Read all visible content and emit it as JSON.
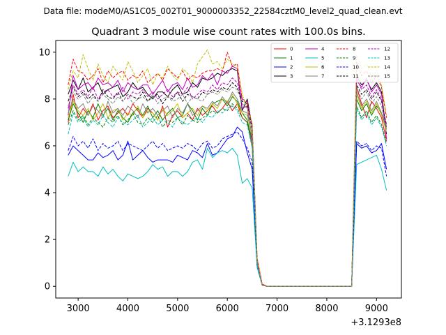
{
  "suptitle": "Data file: modeM0/AS1C05_002T01_9000003352_22584cztM0_level2_quad_clean.evt",
  "chart_data": {
    "type": "line",
    "title": "Quadrant 3 module wise count rates with 100.0s bins.",
    "xlabel": "",
    "ylabel": "",
    "x_offset_label": "+3.1293e8",
    "xlim": [
      2550,
      9500
    ],
    "ylim": [
      -0.5,
      10.5
    ],
    "xticks": [
      3000,
      4000,
      5000,
      6000,
      7000,
      8000,
      9000
    ],
    "yticks": [
      0,
      2,
      4,
      6,
      8,
      10
    ],
    "grid": false,
    "legend": {
      "placement": "top-right",
      "columns": 4
    },
    "bin_width": 100,
    "x": [
      2800,
      2900,
      3000,
      3100,
      3200,
      3300,
      3400,
      3500,
      3600,
      3700,
      3800,
      3900,
      4000,
      4100,
      4200,
      4300,
      4400,
      4500,
      4600,
      4700,
      4800,
      4900,
      5000,
      5100,
      5200,
      5300,
      5400,
      5500,
      5600,
      5700,
      5800,
      5900,
      6000,
      6100,
      6200,
      6300,
      6400,
      6500,
      6600,
      6700,
      6800,
      6900,
      7000,
      7100,
      7200,
      7300,
      7400,
      7500,
      7600,
      7700,
      7800,
      7900,
      8000,
      8100,
      8200,
      8300,
      8400,
      8500,
      8600,
      8700,
      8800,
      8900,
      9000,
      9100,
      9200
    ],
    "series": [
      {
        "name": "0",
        "color": "#ff0000",
        "dash": "solid",
        "values": [
          7.0,
          8.2,
          7.2,
          7.6,
          7.3,
          7.8,
          7.1,
          7.5,
          7.7,
          7.2,
          7.4,
          7.6,
          7.3,
          7.8,
          7.5,
          7.2,
          7.6,
          7.4,
          7.1,
          7.7,
          6.8,
          7.3,
          7.5,
          7.2,
          7.4,
          7.1,
          7.6,
          7.3,
          7.5,
          7.7,
          7.4,
          7.6,
          7.9,
          7.5,
          7.8,
          7.2,
          7.0,
          6.0,
          1.2,
          0.1,
          0,
          0,
          0,
          0,
          0,
          0,
          0,
          0,
          0,
          0,
          0,
          0,
          0,
          0,
          0,
          0,
          0,
          0,
          8.5,
          7.8,
          7.2,
          7.9,
          7.6,
          7.2,
          6.2
        ]
      },
      {
        "name": "1",
        "color": "#008000",
        "dash": "solid",
        "values": [
          7.1,
          7.8,
          7.4,
          7.0,
          7.5,
          7.2,
          7.8,
          7.3,
          7.6,
          7.1,
          7.5,
          7.2,
          7.0,
          7.4,
          7.6,
          7.3,
          7.7,
          7.2,
          7.5,
          7.1,
          7.4,
          7.6,
          7.2,
          7.3,
          7.8,
          7.5,
          7.1,
          7.6,
          7.3,
          7.8,
          7.9,
          8.0,
          7.7,
          8.1,
          7.9,
          7.4,
          7.1,
          6.2,
          1.0,
          0.05,
          0,
          0,
          0,
          0,
          0,
          0,
          0,
          0,
          0,
          0,
          0,
          0,
          0,
          0,
          0,
          0,
          0,
          0,
          8.0,
          7.5,
          7.8,
          7.3,
          7.7,
          7.4,
          6.8
        ]
      },
      {
        "name": "2",
        "color": "#0000ff",
        "dash": "solid",
        "values": [
          5.6,
          6.0,
          5.8,
          5.6,
          5.4,
          5.4,
          5.7,
          5.5,
          5.6,
          5.8,
          5.4,
          5.6,
          6.2,
          5.4,
          5.6,
          5.8,
          5.5,
          5.3,
          5.4,
          5.4,
          5.4,
          5.3,
          5.6,
          5.5,
          5.4,
          5.8,
          5.7,
          5.5,
          6.1,
          5.6,
          5.7,
          6.0,
          6.3,
          6.4,
          6.8,
          6.6,
          5.7,
          5.0,
          0.9,
          0.05,
          0,
          0,
          0,
          0,
          0,
          0,
          0,
          0,
          0,
          0,
          0,
          0,
          0,
          0,
          0,
          0,
          0,
          0,
          6.1,
          5.9,
          6.0,
          5.7,
          5.8,
          6.1,
          5.0
        ]
      },
      {
        "name": "3",
        "color": "#000000",
        "dash": "solid",
        "values": [
          8.2,
          8.8,
          8.4,
          8.9,
          8.3,
          8.5,
          8.7,
          8.2,
          8.4,
          8.5,
          8.6,
          8.1,
          8.3,
          8.7,
          8.4,
          8.5,
          8.2,
          8.0,
          8.3,
          8.3,
          8.1,
          8.4,
          8.6,
          8.2,
          8.3,
          8.7,
          8.5,
          8.9,
          8.8,
          8.9,
          9.1,
          9.0,
          9.2,
          9.3,
          9.2,
          7.5,
          8.0,
          6.8,
          1.1,
          0.05,
          0,
          0,
          0,
          0,
          0,
          0,
          0,
          0,
          0,
          0,
          0,
          0,
          0,
          0,
          0,
          0,
          0,
          0,
          9.0,
          8.6,
          8.8,
          8.4,
          8.7,
          8.3,
          6.5
        ]
      },
      {
        "name": "4",
        "color": "#bf00bf",
        "dash": "solid",
        "values": [
          7.3,
          9.0,
          8.4,
          8.6,
          8.7,
          8.4,
          8.9,
          8.6,
          8.7,
          8.5,
          8.8,
          8.3,
          8.7,
          8.5,
          8.4,
          8.6,
          8.6,
          8.2,
          8.5,
          8.8,
          8.3,
          8.6,
          8.7,
          8.4,
          8.9,
          8.5,
          8.6,
          9.0,
          8.8,
          9.1,
          8.6,
          9.2,
          9.1,
          9.4,
          9.3,
          7.6,
          7.7,
          6.2,
          1.1,
          0.05,
          0,
          0,
          0,
          0,
          0,
          0,
          0,
          0,
          0,
          0,
          0,
          0,
          0,
          0,
          0,
          0,
          0,
          0,
          8.8,
          8.5,
          8.9,
          8.3,
          8.6,
          8.2,
          6.3
        ]
      },
      {
        "name": "5",
        "color": "#00bfbf",
        "dash": "solid",
        "values": [
          4.7,
          5.3,
          4.9,
          5.1,
          4.9,
          4.9,
          4.7,
          5.1,
          4.8,
          5.0,
          4.7,
          4.5,
          4.8,
          4.7,
          4.6,
          4.7,
          4.9,
          5.2,
          5.0,
          5.1,
          4.7,
          4.9,
          4.9,
          4.7,
          4.9,
          5.3,
          5.4,
          5.0,
          5.9,
          5.5,
          5.7,
          5.8,
          5.7,
          5.9,
          5.6,
          4.4,
          4.6,
          4.2,
          0.8,
          0.05,
          0,
          0,
          0,
          0,
          0,
          0,
          0,
          0,
          0,
          0,
          0,
          0,
          0,
          0,
          0,
          0,
          0,
          0,
          5.2,
          5.3,
          5.4,
          5.5,
          5.6,
          5.0,
          4.1
        ]
      },
      {
        "name": "6",
        "color": "#bfbf00",
        "dash": "solid",
        "values": [
          7.2,
          7.9,
          7.5,
          7.3,
          7.6,
          7.1,
          7.4,
          7.8,
          7.2,
          7.5,
          7.6,
          7.1,
          7.4,
          7.3,
          7.7,
          7.2,
          7.5,
          7.4,
          7.1,
          7.6,
          7.3,
          7.5,
          7.8,
          7.2,
          7.4,
          7.6,
          7.3,
          7.7,
          7.5,
          7.8,
          7.6,
          8.0,
          7.9,
          8.2,
          7.8,
          7.4,
          7.3,
          6.4,
          1.0,
          0.05,
          0,
          0,
          0,
          0,
          0,
          0,
          0,
          0,
          0,
          0,
          0,
          0,
          0,
          0,
          0,
          0,
          0,
          0,
          8.2,
          7.6,
          7.9,
          7.4,
          7.8,
          7.3,
          6.6
        ]
      },
      {
        "name": "7",
        "color": "#808080",
        "dash": "solid",
        "values": [
          7.4,
          8.0,
          7.6,
          7.8,
          7.3,
          7.7,
          7.5,
          7.2,
          7.9,
          7.4,
          7.6,
          7.3,
          7.7,
          7.5,
          7.2,
          7.8,
          7.4,
          7.6,
          7.3,
          7.5,
          7.7,
          7.2,
          7.6,
          7.4,
          7.8,
          7.3,
          7.5,
          7.7,
          7.6,
          7.9,
          7.7,
          8.1,
          7.8,
          8.3,
          8.0,
          7.5,
          7.4,
          6.5,
          1.0,
          0.05,
          0,
          0,
          0,
          0,
          0,
          0,
          0,
          0,
          0,
          0,
          0,
          0,
          0,
          0,
          0,
          0,
          0,
          0,
          8.3,
          7.7,
          8.0,
          7.5,
          7.9,
          7.4,
          6.7
        ]
      },
      {
        "name": "8",
        "color": "#ff0000",
        "dash": "dashed",
        "values": [
          8.6,
          9.7,
          9.2,
          9.1,
          8.8,
          9.0,
          9.3,
          8.7,
          9.2,
          8.9,
          9.1,
          9.2,
          8.8,
          9.0,
          8.9,
          9.2,
          8.7,
          8.9,
          9.1,
          8.8,
          9.3,
          9.1,
          8.9,
          9.2,
          8.8,
          9.0,
          8.9,
          9.1,
          9.2,
          9.2,
          9.3,
          9.2,
          10.0,
          9.4,
          9.5,
          8.0,
          7.8,
          6.9,
          1.2,
          0.05,
          0,
          0,
          0,
          0,
          0,
          0,
          0,
          0,
          0,
          0,
          0,
          0,
          0,
          0,
          0,
          0,
          0,
          0,
          9.6,
          9.0,
          9.2,
          8.7,
          9.0,
          8.5,
          7.2
        ]
      },
      {
        "name": "9",
        "color": "#008000",
        "dash": "dashed",
        "values": [
          6.9,
          7.5,
          7.1,
          7.3,
          6.9,
          7.2,
          7.0,
          6.8,
          7.2,
          7.0,
          7.3,
          6.9,
          7.1,
          7.4,
          7.0,
          6.9,
          7.2,
          7.0,
          7.3,
          6.8,
          7.1,
          7.0,
          7.2,
          6.9,
          7.3,
          7.1,
          7.0,
          7.2,
          7.3,
          7.5,
          7.4,
          7.6,
          7.5,
          7.8,
          7.6,
          7.2,
          7.0,
          6.0,
          0.9,
          0.05,
          0,
          0,
          0,
          0,
          0,
          0,
          0,
          0,
          0,
          0,
          0,
          0,
          0,
          0,
          0,
          0,
          0,
          0,
          7.7,
          7.2,
          7.5,
          7.0,
          7.3,
          6.9,
          6.1
        ]
      },
      {
        "name": "10",
        "color": "#0000ff",
        "dash": "dashed",
        "values": [
          5.8,
          6.4,
          6.0,
          6.2,
          5.9,
          6.3,
          5.8,
          6.1,
          5.9,
          6.0,
          6.2,
          5.8,
          6.1,
          6.0,
          5.9,
          5.8,
          6.0,
          6.2,
          5.9,
          6.1,
          5.8,
          5.9,
          6.0,
          5.9,
          6.1,
          6.0,
          5.8,
          6.1,
          6.2,
          5.9,
          6.0,
          6.3,
          6.4,
          6.5,
          6.6,
          6.3,
          5.9,
          5.3,
          0.9,
          0.05,
          0,
          0,
          0,
          0,
          0,
          0,
          0,
          0,
          0,
          0,
          0,
          0,
          0,
          0,
          0,
          0,
          0,
          0,
          6.2,
          6.0,
          6.1,
          5.8,
          6.0,
          5.9,
          4.7
        ]
      },
      {
        "name": "11",
        "color": "#000000",
        "dash": "dashed",
        "values": [
          7.9,
          8.5,
          8.1,
          8.3,
          8.0,
          8.2,
          7.9,
          8.4,
          8.1,
          8.0,
          8.3,
          7.9,
          8.2,
          8.1,
          8.0,
          8.3,
          7.9,
          8.1,
          8.2,
          7.8,
          8.1,
          8.0,
          8.3,
          7.9,
          8.2,
          8.1,
          8.0,
          8.3,
          8.2,
          8.4,
          8.3,
          8.5,
          8.4,
          8.7,
          8.5,
          7.9,
          7.8,
          6.7,
          1.0,
          0.05,
          0,
          0,
          0,
          0,
          0,
          0,
          0,
          0,
          0,
          0,
          0,
          0,
          0,
          0,
          0,
          0,
          0,
          0,
          8.6,
          8.2,
          8.4,
          8.0,
          8.3,
          7.9,
          6.9
        ]
      },
      {
        "name": "12",
        "color": "#bf00bf",
        "dash": "dashed",
        "values": [
          7.6,
          8.6,
          8.2,
          8.4,
          8.1,
          8.5,
          8.0,
          8.3,
          8.4,
          8.1,
          8.2,
          8.5,
          8.0,
          8.3,
          8.2,
          8.4,
          8.1,
          8.3,
          8.0,
          8.2,
          8.4,
          8.1,
          8.3,
          8.2,
          8.5,
          8.0,
          8.2,
          8.4,
          8.3,
          8.6,
          8.4,
          8.7,
          8.6,
          8.9,
          8.7,
          8.0,
          7.9,
          6.8,
          1.1,
          0.05,
          0,
          0,
          0,
          0,
          0,
          0,
          0,
          0,
          0,
          0,
          0,
          0,
          0,
          0,
          0,
          0,
          0,
          0,
          8.9,
          8.4,
          8.6,
          8.1,
          8.4,
          8.0,
          6.8
        ]
      },
      {
        "name": "13",
        "color": "#00bfbf",
        "dash": "dashed",
        "values": [
          6.5,
          7.4,
          7.0,
          7.2,
          6.8,
          7.1,
          6.9,
          7.3,
          7.0,
          6.8,
          7.2,
          7.0,
          6.9,
          7.1,
          7.3,
          6.8,
          7.0,
          7.2,
          6.9,
          7.1,
          7.0,
          6.8,
          7.2,
          7.0,
          6.9,
          7.1,
          7.2,
          7.0,
          7.3,
          7.2,
          7.5,
          7.4,
          7.6,
          7.7,
          7.5,
          7.0,
          6.9,
          5.9,
          0.9,
          0.05,
          0,
          0,
          0,
          0,
          0,
          0,
          0,
          0,
          0,
          0,
          0,
          0,
          0,
          0,
          0,
          0,
          0,
          0,
          7.6,
          7.1,
          7.4,
          6.9,
          7.2,
          6.8,
          6.0
        ]
      },
      {
        "name": "14",
        "color": "#bfbf00",
        "dash": "dashed",
        "values": [
          8.4,
          9.2,
          8.9,
          9.9,
          9.3,
          8.8,
          9.5,
          9.0,
          8.7,
          9.4,
          9.1,
          8.8,
          9.6,
          9.2,
          8.7,
          9.0,
          9.3,
          8.6,
          9.1,
          8.9,
          9.4,
          9.0,
          8.8,
          9.3,
          9.1,
          8.7,
          9.5,
          9.8,
          10.1,
          9.5,
          9.6,
          9.3,
          9.7,
          9.5,
          9.4,
          8.2,
          7.6,
          7.0,
          1.2,
          0.05,
          0,
          0,
          0,
          0,
          0,
          0,
          0,
          0,
          0,
          0,
          0,
          0,
          0,
          0,
          0,
          0,
          0,
          0,
          9.9,
          9.3,
          9.5,
          8.9,
          9.2,
          8.6,
          7.3
        ]
      },
      {
        "name": "15",
        "color": "#808080",
        "dash": "dashed",
        "values": [
          7.7,
          8.3,
          8.0,
          8.2,
          7.8,
          8.1,
          7.9,
          8.2,
          8.0,
          7.8,
          8.1,
          7.9,
          8.2,
          7.8,
          8.0,
          8.1,
          7.9,
          8.2,
          7.8,
          8.0,
          8.1,
          7.9,
          8.0,
          8.2,
          7.8,
          8.1,
          8.0,
          7.9,
          8.2,
          8.3,
          8.2,
          8.4,
          8.3,
          8.5,
          8.4,
          7.8,
          7.6,
          6.6,
          1.0,
          0.05,
          0,
          0,
          0,
          0,
          0,
          0,
          0,
          0,
          0,
          0,
          0,
          0,
          0,
          0,
          0,
          0,
          0,
          0,
          8.5,
          8.0,
          8.3,
          7.8,
          8.1,
          7.7,
          6.7
        ]
      }
    ]
  }
}
